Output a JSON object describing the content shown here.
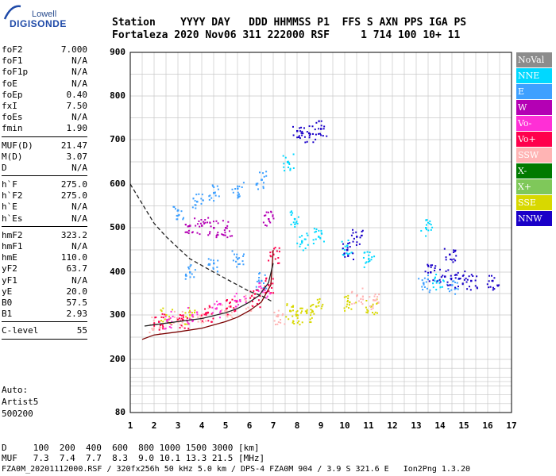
{
  "logo": {
    "top": "Lowell",
    "main": "DIGISONDE"
  },
  "header": {
    "line1": "Station    YYYY DAY   DDD HHMMSS P1  FFS S AXN PPS IGA PS",
    "line2": "Fortaleza 2020 Nov06 311 222000 RSF     1 714 100 10+ 11"
  },
  "params": [
    {
      "k": "foF2",
      "v": "7.000"
    },
    {
      "k": "foF1",
      "v": "N/A"
    },
    {
      "k": "foF1p",
      "v": "N/A"
    },
    {
      "k": "foE",
      "v": "N/A"
    },
    {
      "k": "foEp",
      "v": "0.40"
    },
    {
      "k": "fxI",
      "v": "7.50"
    },
    {
      "k": "foEs",
      "v": "N/A"
    },
    {
      "k": "fmin",
      "v": "1.90"
    },
    {
      "sep": true
    },
    {
      "k": "MUF(D)",
      "v": "21.47"
    },
    {
      "k": "M(D)",
      "v": "3.07"
    },
    {
      "k": "D",
      "v": "N/A"
    },
    {
      "sep": true
    },
    {
      "k": "h`F",
      "v": "275.0"
    },
    {
      "k": "h`F2",
      "v": "275.0"
    },
    {
      "k": "h`E",
      "v": "N/A"
    },
    {
      "k": "h`Es",
      "v": "N/A"
    },
    {
      "sep": true
    },
    {
      "k": "hmF2",
      "v": "323.2"
    },
    {
      "k": "hmF1",
      "v": "N/A"
    },
    {
      "k": "hmE",
      "v": "110.0"
    },
    {
      "k": "yF2",
      "v": "63.7"
    },
    {
      "k": "yF1",
      "v": "N/A"
    },
    {
      "k": "yE",
      "v": "20.0"
    },
    {
      "k": "B0",
      "v": "57.5"
    },
    {
      "k": "B1",
      "v": "2.93"
    },
    {
      "sep": true
    },
    {
      "k": "C-level",
      "v": "55"
    },
    {
      "sep": true
    }
  ],
  "auto": {
    "line1": "Auto:",
    "line2": "Artist5",
    "line3": "500200"
  },
  "legend": [
    {
      "label": "NoVal",
      "color": "#8c8c8c"
    },
    {
      "label": "NNE",
      "color": "#00d8ff"
    },
    {
      "label": "E",
      "color": "#3ea0ff"
    },
    {
      "label": "W",
      "color": "#b400b4"
    },
    {
      "label": "Vo-",
      "color": "#ff2fd6"
    },
    {
      "label": "Vo+",
      "color": "#ff004c"
    },
    {
      "label": "SSW",
      "color": "#ffb4b4"
    },
    {
      "label": "X-",
      "color": "#007a00"
    },
    {
      "label": "X+",
      "color": "#7fc85a"
    },
    {
      "label": "SSE",
      "color": "#d8d800"
    },
    {
      "label": "NNW",
      "color": "#1a00c8"
    }
  ],
  "footer": {
    "d_line": "D     100  200  400  600  800 1000 1500 3000 [km]",
    "muf_line": "MUF   7.3  7.4  7.7  8.3  9.0 10.1 13.3 21.5 [MHz]",
    "file_line": "FZA0M_20201112000.RSF / 320fx256h 50 kHz 5.0 km / DPS-4 FZA0M 904 / 3.9 S 321.6 E   Ion2Png 1.3.20"
  },
  "chart_data": {
    "type": "scatter",
    "xlabel": "",
    "ylabel": "",
    "xlim": [
      1,
      17
    ],
    "ylim": [
      80,
      900
    ],
    "x_ticks": [
      1,
      2,
      3,
      4,
      5,
      6,
      7,
      8,
      9,
      10,
      11,
      12,
      13,
      14,
      15,
      16,
      17
    ],
    "y_ticks": [
      80,
      200,
      300,
      400,
      500,
      600,
      700,
      800,
      900
    ],
    "grid": true,
    "legend_position": "right",
    "series": [
      {
        "name": "NNE",
        "points": [
          [
            7.6,
            650
          ],
          [
            7.9,
            520
          ],
          [
            8.2,
            470
          ],
          [
            8.9,
            480
          ],
          [
            10.1,
            460
          ],
          [
            11.0,
            430
          ],
          [
            13.4,
            500
          ],
          [
            13.9,
            380
          ]
        ]
      },
      {
        "name": "E",
        "points": [
          [
            3.0,
            540
          ],
          [
            3.8,
            560
          ],
          [
            4.5,
            580
          ],
          [
            5.5,
            590
          ],
          [
            6.5,
            610
          ],
          [
            3.5,
            400
          ],
          [
            4.5,
            420
          ],
          [
            5.5,
            430
          ],
          [
            6.5,
            380
          ],
          [
            14.5,
            370
          ],
          [
            13.3,
            375
          ]
        ]
      },
      {
        "name": "W",
        "points": [
          [
            3.5,
            505
          ],
          [
            4.0,
            505
          ],
          [
            4.5,
            500
          ],
          [
            5.0,
            500
          ],
          [
            6.8,
            520
          ]
        ]
      },
      {
        "name": "NNW",
        "points": [
          [
            8.0,
            720
          ],
          [
            8.5,
            715
          ],
          [
            9.0,
            725
          ],
          [
            10.1,
            450
          ],
          [
            10.5,
            480
          ],
          [
            13.6,
            400
          ],
          [
            14.2,
            390
          ],
          [
            14.8,
            385
          ],
          [
            15.3,
            380
          ],
          [
            14.4,
            440
          ],
          [
            16.2,
            380
          ]
        ]
      },
      {
        "name": "SSE",
        "points": [
          [
            7.7,
            310
          ],
          [
            8.0,
            300
          ],
          [
            8.4,
            305
          ],
          [
            8.8,
            320
          ],
          [
            10.2,
            330
          ],
          [
            11.1,
            320
          ],
          [
            2.5,
            300
          ],
          [
            3.5,
            300
          ]
        ]
      },
      {
        "name": "SSW",
        "points": [
          [
            2.0,
            280
          ],
          [
            3.0,
            290
          ],
          [
            4.0,
            300
          ],
          [
            5.0,
            310
          ],
          [
            6.0,
            330
          ],
          [
            7.2,
            300
          ],
          [
            10.5,
            345
          ],
          [
            11.2,
            335
          ]
        ]
      },
      {
        "name": "Vo+",
        "points": [
          [
            2.2,
            285
          ],
          [
            3.2,
            290
          ],
          [
            4.2,
            305
          ],
          [
            5.2,
            320
          ],
          [
            6.2,
            340
          ],
          [
            6.8,
            370
          ],
          [
            7.0,
            440
          ]
        ]
      },
      {
        "name": "Vo-",
        "points": [
          [
            2.6,
            290
          ],
          [
            3.6,
            300
          ],
          [
            4.6,
            315
          ],
          [
            5.6,
            335
          ],
          [
            6.6,
            360
          ]
        ]
      }
    ],
    "curves": [
      {
        "name": "o-trace",
        "points": [
          [
            1.5,
            245
          ],
          [
            2,
            255
          ],
          [
            3,
            262
          ],
          [
            4,
            270
          ],
          [
            5,
            285
          ],
          [
            5.5,
            295
          ],
          [
            6,
            310
          ],
          [
            6.5,
            330
          ],
          [
            6.9,
            370
          ],
          [
            7.0,
            450
          ]
        ]
      },
      {
        "name": "x-trace",
        "points": [
          [
            1.6,
            275
          ],
          [
            2,
            278
          ],
          [
            3,
            285
          ],
          [
            4,
            292
          ],
          [
            5,
            305
          ],
          [
            5.5,
            315
          ],
          [
            6,
            330
          ],
          [
            6.4,
            345
          ],
          [
            6.8,
            375
          ],
          [
            7.0,
            420
          ]
        ]
      },
      {
        "name": "profile",
        "points": [
          [
            1.0,
            600
          ],
          [
            1.5,
            555
          ],
          [
            2.0,
            510
          ],
          [
            2.5,
            480
          ],
          [
            3.0,
            455
          ],
          [
            3.5,
            430
          ],
          [
            4.0,
            415
          ],
          [
            4.5,
            400
          ],
          [
            5.0,
            385
          ],
          [
            5.5,
            370
          ],
          [
            6.0,
            355
          ],
          [
            6.5,
            345
          ],
          [
            7.0,
            330
          ]
        ]
      }
    ]
  }
}
